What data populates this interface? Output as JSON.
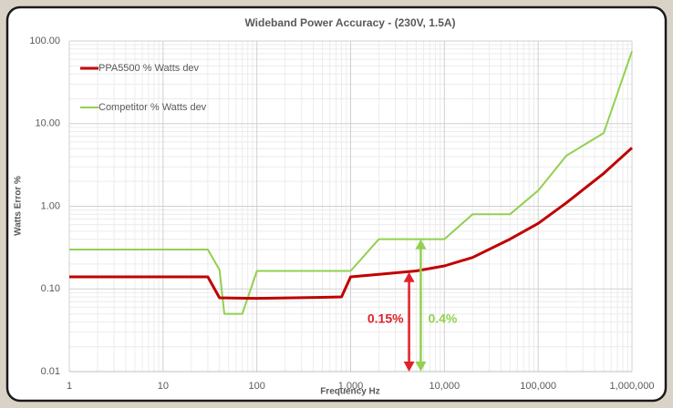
{
  "chart_data": {
    "type": "line",
    "title": "Wideband Power Accuracy - (230V, 1.5A)",
    "x_label": "Frequency Hz",
    "y_label": "Watts Error %",
    "log_x": true,
    "log_y": true,
    "grid": true,
    "legend": "upper left",
    "xlim": [
      1,
      1000000
    ],
    "ylim": [
      0.01,
      100
    ],
    "xticks": [
      1,
      10,
      100,
      {
        "value": 1000,
        "label": "1,000"
      },
      {
        "value": 10000,
        "label": "10,000"
      },
      {
        "value": 100000,
        "label": "100,000"
      },
      {
        "value": 1000000,
        "label": "1,000,000"
      }
    ],
    "yticks": [
      {
        "value": 0.01,
        "label": "0.01"
      },
      {
        "value": 0.1,
        "label": "0.10"
      },
      {
        "value": 1,
        "label": "1.00"
      },
      {
        "value": 10,
        "label": "10.00"
      },
      {
        "value": 100,
        "label": "100.00"
      }
    ],
    "series": [
      {
        "name": "PPA5500 % Watts dev",
        "color": "#c00000",
        "x": [
          1,
          30,
          40,
          100,
          500,
          800,
          1000,
          2000,
          5000,
          10000,
          20000,
          50000,
          100000,
          200000,
          500000,
          1000000
        ],
        "values": [
          0.14,
          0.14,
          0.078,
          0.077,
          0.079,
          0.08,
          0.14,
          0.15,
          0.165,
          0.19,
          0.24,
          0.4,
          0.62,
          1.1,
          2.5,
          5.1
        ]
      },
      {
        "name": "Competitor % Watts dev",
        "color": "#92d050",
        "x": [
          1,
          30,
          40,
          45,
          70,
          100,
          1000,
          2000,
          10000,
          20000,
          50000,
          100000,
          200000,
          500000,
          1000000
        ],
        "values": [
          0.3,
          0.3,
          0.17,
          0.05,
          0.05,
          0.165,
          0.165,
          0.4,
          0.4,
          0.8,
          0.8,
          1.55,
          4.1,
          7.7,
          75
        ]
      }
    ],
    "annotations": [
      {
        "text": "0.15%",
        "color": "#e0202a",
        "x": 4200,
        "y": 0.16
      },
      {
        "text": "0.4%",
        "color": "#92d050",
        "x": 5600,
        "y": 0.4
      }
    ]
  }
}
